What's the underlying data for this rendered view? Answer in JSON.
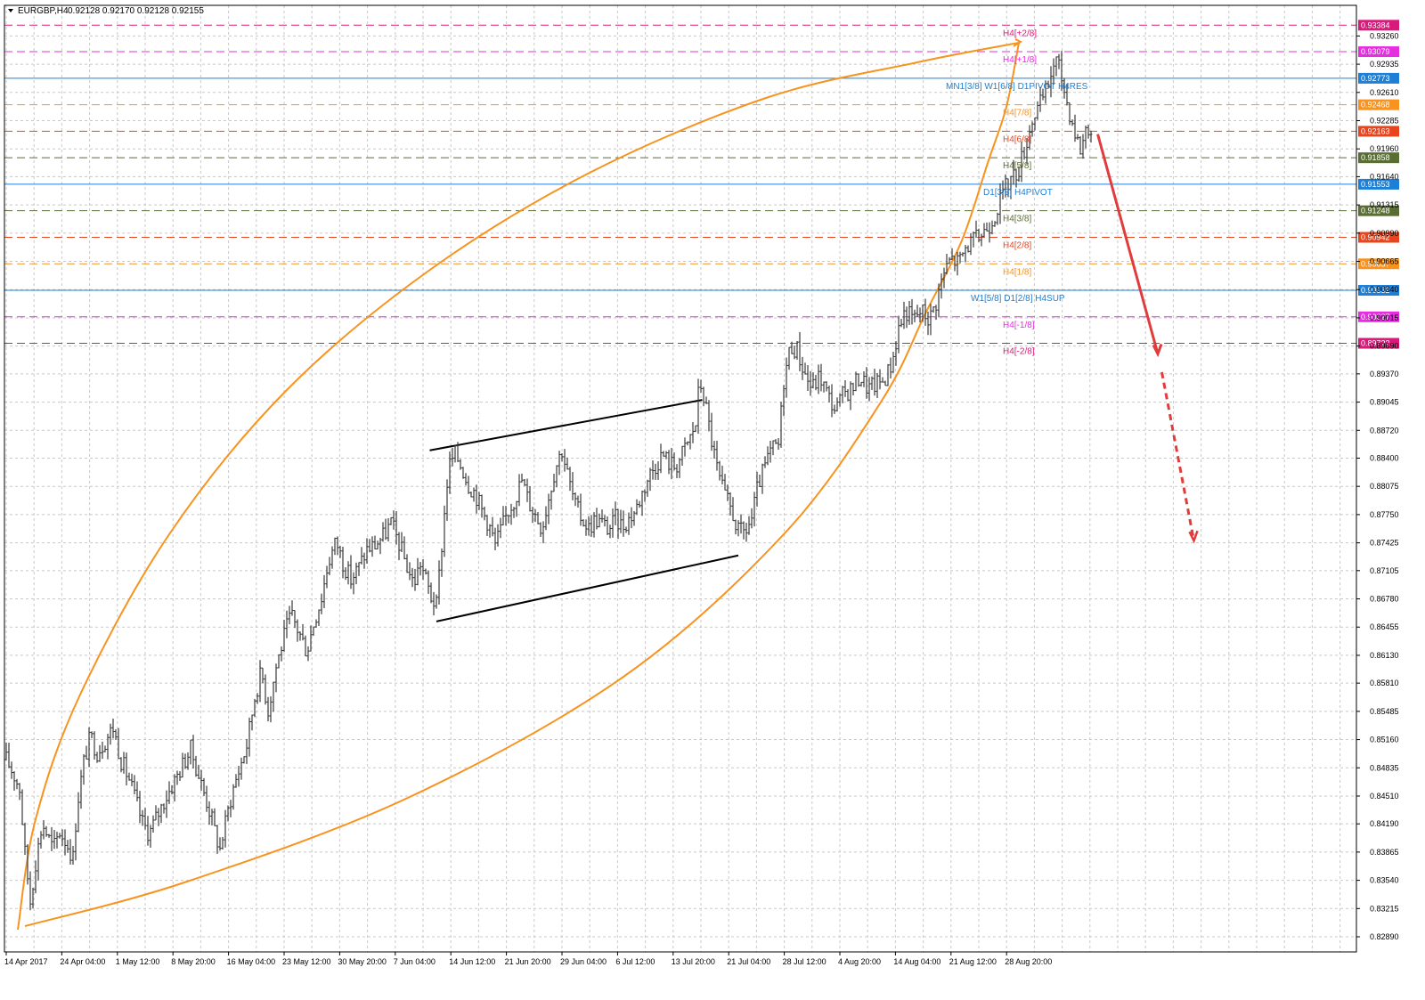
{
  "header": {
    "symbol": "EURGBP,H4",
    "ohlc": "0.92128 0.92170 0.92128 0.92155"
  },
  "colors": {
    "background": "#ffffff",
    "grid": "#c8c8c8",
    "candle": "#3a3a3a",
    "curve": "#f7931e",
    "channel": "#000000",
    "forecast_arrow": "#e03c3c"
  },
  "chart_data": {
    "type": "candlestick",
    "symbol": "EURGBP",
    "timeframe": "H4",
    "grid": true,
    "ylim": [
      0.8289,
      0.9351
    ],
    "y_ticks": [
      "0.93260",
      "0.92935",
      "0.92610",
      "0.92285",
      "0.91960",
      "0.91640",
      "0.91315",
      "0.90990",
      "0.90665",
      "0.90340",
      "0.90015",
      "0.89690",
      "0.89370",
      "0.89045",
      "0.88720",
      "0.88400",
      "0.88075",
      "0.87750",
      "0.87425",
      "0.87105",
      "0.86780",
      "0.86455",
      "0.86130",
      "0.85810",
      "0.85485",
      "0.85160",
      "0.84835",
      "0.84510",
      "0.84190",
      "0.83865",
      "0.83540",
      "0.83215",
      "0.82890"
    ],
    "x_ticks": [
      "14 Apr 2017",
      "24 Apr 04:00",
      "1 May 12:00",
      "8 May 20:00",
      "16 May 04:00",
      "23 May 12:00",
      "30 May 20:00",
      "7 Jun 04:00",
      "14 Jun 12:00",
      "21 Jun 20:00",
      "29 Jun 04:00",
      "6 Jul 12:00",
      "13 Jul 20:00",
      "21 Jul 04:00",
      "28 Jul 12:00",
      "4 Aug 20:00",
      "14 Aug 04:00",
      "21 Aug 12:00",
      "28 Aug 20:00"
    ],
    "price_path": [
      [
        0,
        0.8493
      ],
      [
        5,
        0.8478
      ],
      [
        10,
        0.846
      ],
      [
        14,
        0.8385
      ],
      [
        18,
        0.833
      ],
      [
        22,
        0.8375
      ],
      [
        27,
        0.842
      ],
      [
        31,
        0.8405
      ],
      [
        35,
        0.839
      ],
      [
        40,
        0.841
      ],
      [
        45,
        0.8398
      ],
      [
        50,
        0.838
      ],
      [
        53,
        0.844
      ],
      [
        58,
        0.849
      ],
      [
        63,
        0.852
      ],
      [
        68,
        0.8502
      ],
      [
        74,
        0.8515
      ],
      [
        80,
        0.853
      ],
      [
        86,
        0.8492
      ],
      [
        92,
        0.847
      ],
      [
        97,
        0.8445
      ],
      [
        102,
        0.842
      ],
      [
        107,
        0.8408
      ],
      [
        112,
        0.8425
      ],
      [
        118,
        0.8445
      ],
      [
        123,
        0.846
      ],
      [
        128,
        0.8475
      ],
      [
        133,
        0.849
      ],
      [
        138,
        0.8505
      ],
      [
        143,
        0.848
      ],
      [
        148,
        0.8455
      ],
      [
        153,
        0.843
      ],
      [
        157,
        0.8405
      ],
      [
        160,
        0.839
      ],
      [
        164,
        0.842
      ],
      [
        169,
        0.8455
      ],
      [
        175,
        0.8485
      ],
      [
        180,
        0.851
      ],
      [
        186,
        0.8565
      ],
      [
        191,
        0.8595
      ],
      [
        196,
        0.855
      ],
      [
        202,
        0.86
      ],
      [
        207,
        0.863
      ],
      [
        213,
        0.866
      ],
      [
        219,
        0.864
      ],
      [
        225,
        0.8618
      ],
      [
        230,
        0.865
      ],
      [
        236,
        0.868
      ],
      [
        241,
        0.872
      ],
      [
        247,
        0.8745
      ],
      [
        252,
        0.872
      ],
      [
        258,
        0.87
      ],
      [
        264,
        0.8715
      ],
      [
        270,
        0.8735
      ],
      [
        276,
        0.874
      ],
      [
        282,
        0.875
      ],
      [
        288,
        0.8765
      ],
      [
        294,
        0.8742
      ],
      [
        300,
        0.8715
      ],
      [
        305,
        0.8695
      ],
      [
        310,
        0.872
      ],
      [
        314,
        0.87
      ],
      [
        318,
        0.868
      ],
      [
        322,
        0.867
      ],
      [
        326,
        0.874
      ],
      [
        331,
        0.883
      ],
      [
        336,
        0.8845
      ],
      [
        341,
        0.883
      ],
      [
        346,
        0.881
      ],
      [
        351,
        0.88
      ],
      [
        356,
        0.878
      ],
      [
        361,
        0.8765
      ],
      [
        366,
        0.874
      ],
      [
        371,
        0.876
      ],
      [
        376,
        0.878
      ],
      [
        381,
        0.8795
      ],
      [
        386,
        0.8815
      ],
      [
        391,
        0.879
      ],
      [
        396,
        0.8775
      ],
      [
        401,
        0.876
      ],
      [
        406,
        0.8795
      ],
      [
        411,
        0.883
      ],
      [
        416,
        0.885
      ],
      [
        421,
        0.8815
      ],
      [
        426,
        0.8785
      ],
      [
        431,
        0.877
      ],
      [
        436,
        0.876
      ],
      [
        441,
        0.877
      ],
      [
        446,
        0.8765
      ],
      [
        451,
        0.8758
      ],
      [
        456,
        0.877
      ],
      [
        461,
        0.8762
      ],
      [
        466,
        0.877
      ],
      [
        471,
        0.878
      ],
      [
        476,
        0.88
      ],
      [
        481,
        0.882
      ],
      [
        486,
        0.8832
      ],
      [
        491,
        0.8845
      ],
      [
        496,
        0.8835
      ],
      [
        501,
        0.883
      ],
      [
        506,
        0.8845
      ],
      [
        511,
        0.886
      ],
      [
        516,
        0.888
      ],
      [
        519,
        0.893
      ],
      [
        523,
        0.8905
      ],
      [
        528,
        0.886
      ],
      [
        533,
        0.882
      ],
      [
        538,
        0.8795
      ],
      [
        543,
        0.878
      ],
      [
        548,
        0.8755
      ],
      [
        553,
        0.8755
      ],
      [
        558,
        0.877
      ],
      [
        563,
        0.881
      ],
      [
        568,
        0.883
      ],
      [
        573,
        0.885
      ],
      [
        578,
        0.8855
      ],
      [
        582,
        0.893
      ],
      [
        587,
        0.897
      ],
      [
        592,
        0.8965
      ],
      [
        597,
        0.894
      ],
      [
        603,
        0.892
      ],
      [
        609,
        0.8935
      ],
      [
        615,
        0.8912
      ],
      [
        621,
        0.8895
      ],
      [
        627,
        0.8915
      ],
      [
        633,
        0.892
      ],
      [
        639,
        0.8935
      ],
      [
        645,
        0.892
      ],
      [
        651,
        0.8925
      ],
      [
        657,
        0.893
      ],
      [
        663,
        0.895
      ],
      [
        668,
        0.899
      ],
      [
        673,
        0.901
      ],
      [
        679,
        0.9
      ],
      [
        685,
        0.901
      ],
      [
        691,
        0.9
      ],
      [
        696,
        0.902
      ],
      [
        701,
        0.905
      ],
      [
        707,
        0.907
      ],
      [
        713,
        0.9065
      ],
      [
        719,
        0.9085
      ],
      [
        725,
        0.909
      ],
      [
        731,
        0.91
      ],
      [
        736,
        0.911
      ],
      [
        741,
        0.9125
      ],
      [
        746,
        0.9145
      ],
      [
        751,
        0.916
      ],
      [
        757,
        0.917
      ],
      [
        763,
        0.92
      ],
      [
        769,
        0.9235
      ],
      [
        775,
        0.925
      ],
      [
        780,
        0.927
      ],
      [
        785,
        0.93
      ],
      [
        789,
        0.9285
      ],
      [
        794,
        0.925
      ],
      [
        799,
        0.922
      ],
      [
        804,
        0.9195
      ],
      [
        809,
        0.9225
      ],
      [
        812,
        0.9215
      ]
    ],
    "channel_lines": [
      {
        "from": [
          317,
          0.8849
        ],
        "to": [
          521,
          0.8907
        ]
      },
      {
        "from": [
          322,
          0.8652
        ],
        "to": [
          548,
          0.8728
        ]
      }
    ],
    "levels": [
      {
        "price": 0.93384,
        "tag": "0.93384",
        "label": "H4[+2/8]",
        "color": "#d81b7a",
        "style": "dash"
      },
      {
        "price": 0.93079,
        "tag": "0.93079",
        "label": "H4[+1/8]",
        "color": "#e52ee0",
        "style": "dash"
      },
      {
        "price": 0.92773,
        "tag": "0.92773",
        "label": "MN1[3/8] W1[6/8] D1PIVOT H4RES",
        "color": "#1e7fd6",
        "style": "solid"
      },
      {
        "price": 0.92468,
        "tag": "0.92468",
        "label": "H4[7/8]",
        "color": "#f7931e",
        "style": "dash"
      },
      {
        "price": 0.92163,
        "tag": "0.92163",
        "label": "H4[6/8]",
        "color": "#e8451e",
        "style": "dash"
      },
      {
        "price": 0.91858,
        "tag": "0.91858",
        "label": "H4[5/8]",
        "color": "#5a6e34",
        "style": "dash"
      },
      {
        "price": 0.91553,
        "tag": "0.91553",
        "label": "D1[3/8] H4PIVOT",
        "color": "#1e7fd6",
        "style": "solid"
      },
      {
        "price": 0.91248,
        "tag": "0.91248",
        "label": "H4[3/8]",
        "color": "#5a6e34",
        "style": "dash"
      },
      {
        "price": 0.90942,
        "tag": "0.90942",
        "label": "H4[2/8]",
        "color": "#e8451e",
        "style": "dash"
      },
      {
        "price": 0.90637,
        "tag": "0.90637",
        "label": "H4[1/8]",
        "color": "#f7931e",
        "style": "dash"
      },
      {
        "price": 0.90332,
        "tag": "0.90332",
        "label": "W1[5/8] D1[2/8] H4SUP",
        "color": "#1e7fd6",
        "style": "solid"
      },
      {
        "price": 0.90027,
        "tag": "0.90027",
        "label": "H4[-1/8]",
        "color": "#e52ee0",
        "style": "dash"
      },
      {
        "price": 0.89722,
        "tag": "0.89722",
        "label": "H4[-2/8]",
        "color": "#d81b7a",
        "style": "dash"
      }
    ],
    "forecast": {
      "solid": {
        "from": [
          817,
          0.9213
        ],
        "to": [
          862,
          0.896
        ]
      },
      "dashed": {
        "from": [
          865,
          0.8939
        ],
        "to": [
          889,
          0.8745
        ]
      }
    }
  }
}
